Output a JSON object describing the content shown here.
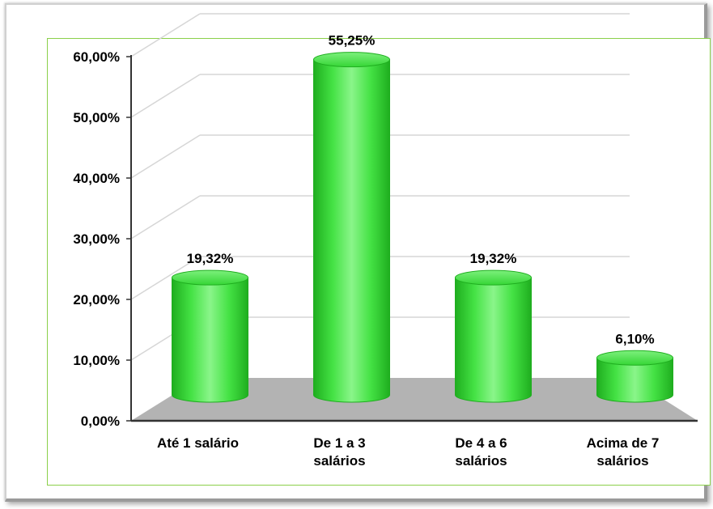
{
  "chart_data": {
    "type": "bar",
    "style": "3d-cylinder",
    "categories": [
      [
        "Até 1 salário"
      ],
      [
        "De 1 a 3",
        "salários"
      ],
      [
        "De 4 a 6",
        "salários"
      ],
      [
        "Acima de 7",
        "salários"
      ]
    ],
    "values": [
      19.32,
      55.25,
      19.32,
      6.1
    ],
    "data_labels": [
      "19,32%",
      "55,25%",
      "19,32%",
      "6,10%"
    ],
    "y_ticks": [
      "0,00%",
      "10,00%",
      "20,00%",
      "30,00%",
      "40,00%",
      "50,00%",
      "60,00%"
    ],
    "ylim": [
      0,
      60
    ],
    "grid": true,
    "colors": {
      "bar": "#33dd33",
      "bar_light": "#7cf57c",
      "bar_dark": "#1fae1f",
      "floor": "#b3b3b3",
      "border": "#8bd04a",
      "grid": "#d6d6d6"
    }
  }
}
